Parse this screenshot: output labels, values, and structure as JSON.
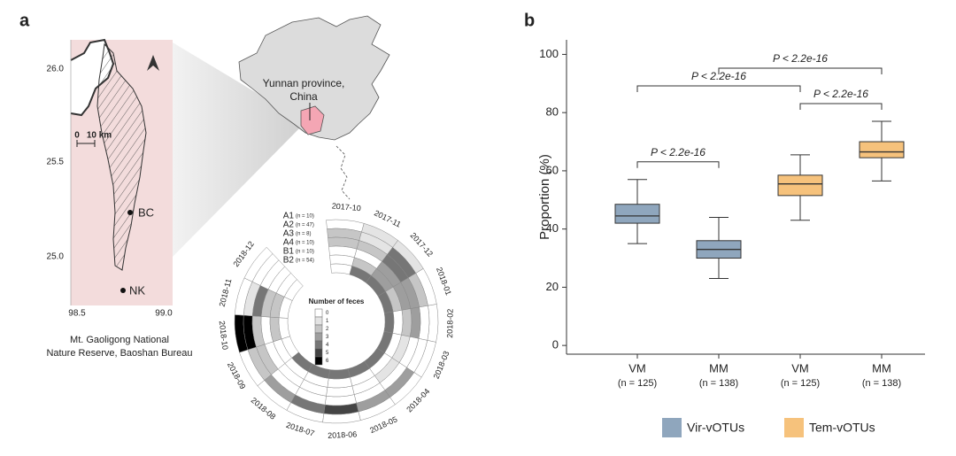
{
  "panel_labels": [
    "a",
    "b"
  ],
  "map": {
    "lat_ticks": [
      "26.0",
      "25.5",
      "25.0"
    ],
    "lon_ticks": [
      "98.5",
      "99.0"
    ],
    "scale": [
      "0",
      "10 km"
    ],
    "sites": [
      {
        "label": "BC",
        "color": "#3a6fc4"
      },
      {
        "label": "NK",
        "color": "#d03030"
      }
    ],
    "caption": [
      "Mt. Gaoligong National",
      "Nature Reserve, Baoshan Bureau"
    ]
  },
  "inset": {
    "label": [
      "Yunnan province,",
      "China"
    ]
  },
  "heatmap": {
    "months": [
      "2017-10",
      "2017-11",
      "2017-12",
      "2018-01",
      "2018-02",
      "2018-03",
      "2018-04",
      "2018-05",
      "2018-06",
      "2018-07",
      "2018-08",
      "2018-09",
      "2018-10",
      "2018-11",
      "2018-12"
    ],
    "rings": [
      {
        "name": "A1",
        "n": "(n = 10)",
        "color": "#c0392b",
        "values": [
          0,
          1,
          1,
          0,
          0,
          0,
          0,
          0,
          0,
          0,
          0,
          0,
          6,
          0,
          0
        ]
      },
      {
        "name": "A2",
        "n": "(n = 47)",
        "color": "#c0392b",
        "values": [
          2,
          1,
          4,
          2,
          0,
          0,
          3,
          3,
          5,
          4,
          3,
          2,
          6,
          1,
          0
        ]
      },
      {
        "name": "A3",
        "n": "(n = 8)",
        "color": "#c0392b",
        "values": [
          2,
          2,
          4,
          3,
          3,
          0,
          0,
          0,
          0,
          0,
          0,
          2,
          2,
          4,
          0
        ]
      },
      {
        "name": "A4",
        "n": "(n = 10)",
        "color": "#c0392b",
        "values": [
          0,
          0,
          3,
          3,
          2,
          1,
          1,
          0,
          0,
          0,
          0,
          0,
          0,
          2,
          0
        ]
      },
      {
        "name": "B1",
        "n": "(n = 10)",
        "color": "#2e86c1",
        "values": [
          0,
          2,
          3,
          2,
          0,
          0,
          0,
          0,
          0,
          0,
          0,
          0,
          2,
          2,
          0
        ]
      },
      {
        "name": "B2",
        "n": "(n = 54)",
        "color": "#2e86c1",
        "values": [
          0,
          4,
          4,
          4,
          4,
          4,
          4,
          4,
          4,
          4,
          4,
          0,
          0,
          0,
          0
        ]
      }
    ],
    "legend_title": "Number of feces",
    "levels": [
      0,
      1,
      2,
      3,
      4,
      5,
      6
    ]
  },
  "chart_data": {
    "type": "box",
    "categories": [
      "VM",
      "MM",
      "VM",
      "MM"
    ],
    "category_notes": [
      "(n = 125)",
      "(n = 138)",
      "(n = 125)",
      "(n = 138)"
    ],
    "y_label": "Proportion (%)",
    "ylim": [
      -3,
      105
    ],
    "yticks": [
      0,
      20,
      40,
      60,
      80,
      100
    ],
    "series": [
      {
        "name": "Vir-vOTUs",
        "color": "#8fa6bd",
        "values": [
          {
            "min": 35,
            "q1": 42,
            "median": 44.5,
            "q3": 48.5,
            "max": 57
          },
          {
            "min": 23,
            "q1": 30,
            "median": 33,
            "q3": 36,
            "max": 44
          },
          null,
          null
        ]
      },
      {
        "name": "Tem-vOTUs",
        "color": "#f6c27c",
        "values": [
          null,
          null,
          {
            "min": 43,
            "q1": 51.5,
            "median": 55.5,
            "q3": 58.5,
            "max": 65.5
          },
          {
            "min": 56.5,
            "q1": 64.5,
            "median": 66.5,
            "q3": 70,
            "max": 77
          }
        ]
      }
    ],
    "comparisons": [
      {
        "label": "P < 2.2e-16",
        "between": [
          0,
          1
        ]
      },
      {
        "label": "P < 2.2e-16",
        "between": [
          2,
          3
        ]
      },
      {
        "label": "P < 2.2e-16",
        "between": [
          0,
          2
        ]
      },
      {
        "label": "P < 2.2e-16",
        "between": [
          1,
          3
        ]
      }
    ]
  }
}
